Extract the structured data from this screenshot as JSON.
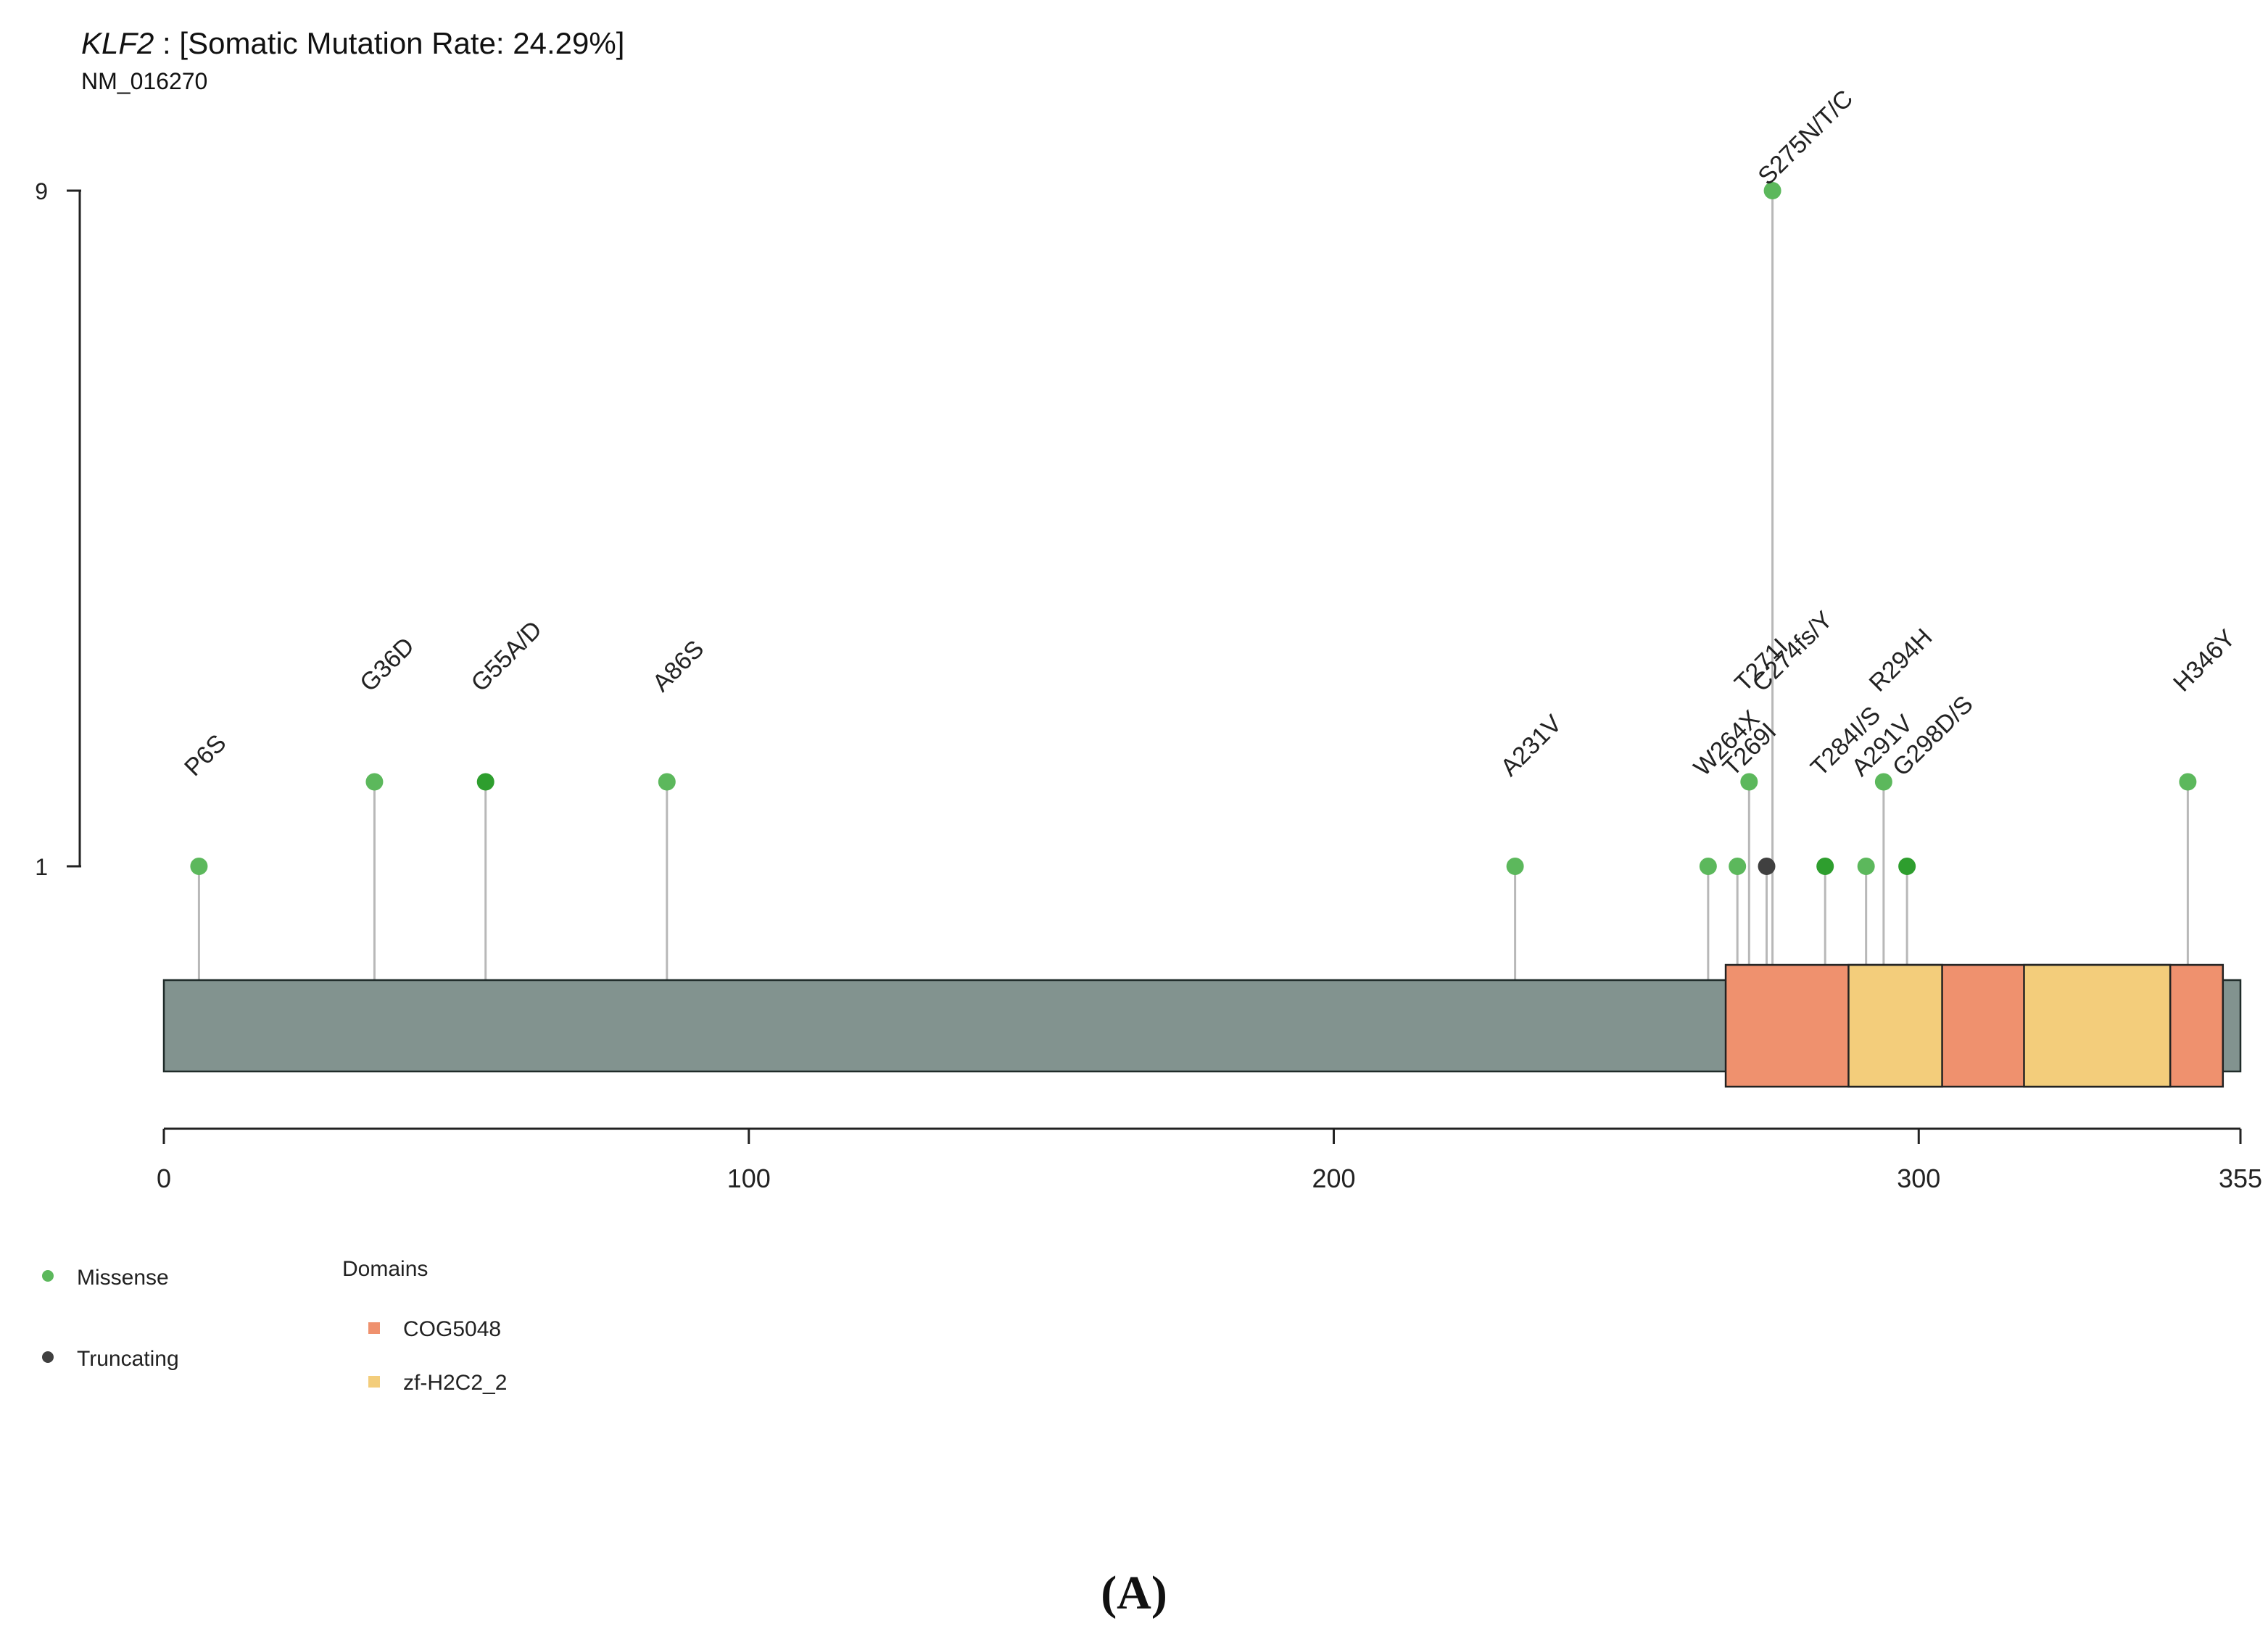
{
  "header": {
    "gene": "KLF2",
    "rest": " : [Somatic Mutation Rate: 24.29%]",
    "transcript": "NM_016270"
  },
  "panel_label": "(A)",
  "chart_data": {
    "type": "lollipop",
    "protein_length": 355,
    "xlim": [
      0,
      355
    ],
    "x_ticks": [
      0,
      100,
      200,
      300,
      355
    ],
    "y_ticks": [
      1,
      9
    ],
    "colors": {
      "missense": "#5cb85c",
      "missense_dark": "#2e9e2e",
      "truncating": "#404040",
      "backbone": "#82938f",
      "COG5048": "#ef916e",
      "zf-H2C2_2": "#f3cd7b",
      "stem": "#b8b8b8"
    },
    "domains": [
      {
        "name": "COG5048",
        "start": 267,
        "end": 352
      },
      {
        "name": "zf-H2C2_2",
        "start": 288,
        "end": 304
      },
      {
        "name": "zf-H2C2_2",
        "start": 318,
        "end": 343
      }
    ],
    "mutations": [
      {
        "label": "P6S",
        "position": 6,
        "count": 1,
        "type": "Missense",
        "shade": "light",
        "label_pos": 2
      },
      {
        "label": "G36D",
        "position": 36,
        "count": 2,
        "type": "Missense",
        "shade": "light",
        "label_pos": 3
      },
      {
        "label": "G55A/D",
        "position": 55,
        "count": 2,
        "type": "Missense",
        "shade": "dark",
        "label_pos": 3
      },
      {
        "label": "A86S",
        "position": 86,
        "count": 2,
        "type": "Missense",
        "shade": "light",
        "label_pos": 3
      },
      {
        "label": "A231V",
        "position": 231,
        "count": 1,
        "type": "Missense",
        "shade": "light",
        "label_pos": 2
      },
      {
        "label": "W264X",
        "position": 264,
        "count": 1,
        "type": "Missense",
        "shade": "light",
        "label_pos": 2
      },
      {
        "label": "T269I",
        "position": 269,
        "count": 1,
        "type": "Missense",
        "shade": "light",
        "label_pos": 2
      },
      {
        "label": "T271I",
        "position": 271,
        "count": 2,
        "type": "Missense",
        "shade": "light",
        "label_pos": 3
      },
      {
        "label": "C274fs/Y",
        "position": 274,
        "count": 1,
        "type": "Truncating",
        "shade": "dark",
        "label_pos": 3
      },
      {
        "label": "S275N/T/C",
        "position": 275,
        "count": 9,
        "type": "Missense",
        "shade": "light",
        "label_pos": 9
      },
      {
        "label": "T284I/S",
        "position": 284,
        "count": 1,
        "type": "Missense",
        "shade": "dark",
        "label_pos": 2
      },
      {
        "label": "A291V",
        "position": 291,
        "count": 1,
        "type": "Missense",
        "shade": "light",
        "label_pos": 2
      },
      {
        "label": "R294H",
        "position": 294,
        "count": 2,
        "type": "Missense",
        "shade": "light",
        "label_pos": 3
      },
      {
        "label": "G298D/S",
        "position": 298,
        "count": 1,
        "type": "Missense",
        "shade": "dark",
        "label_pos": 2
      },
      {
        "label": "H346Y",
        "position": 346,
        "count": 2,
        "type": "Missense",
        "shade": "light",
        "label_pos": 3
      }
    ],
    "legend": {
      "mutation_types": [
        {
          "name": "Missense",
          "color": "#5cb85c"
        },
        {
          "name": "Truncating",
          "color": "#404040"
        }
      ],
      "domains_title": "Domains",
      "domains": [
        {
          "name": "COG5048",
          "color": "#ef916e"
        },
        {
          "name": "zf-H2C2_2",
          "color": "#f3cd7b"
        }
      ]
    }
  }
}
